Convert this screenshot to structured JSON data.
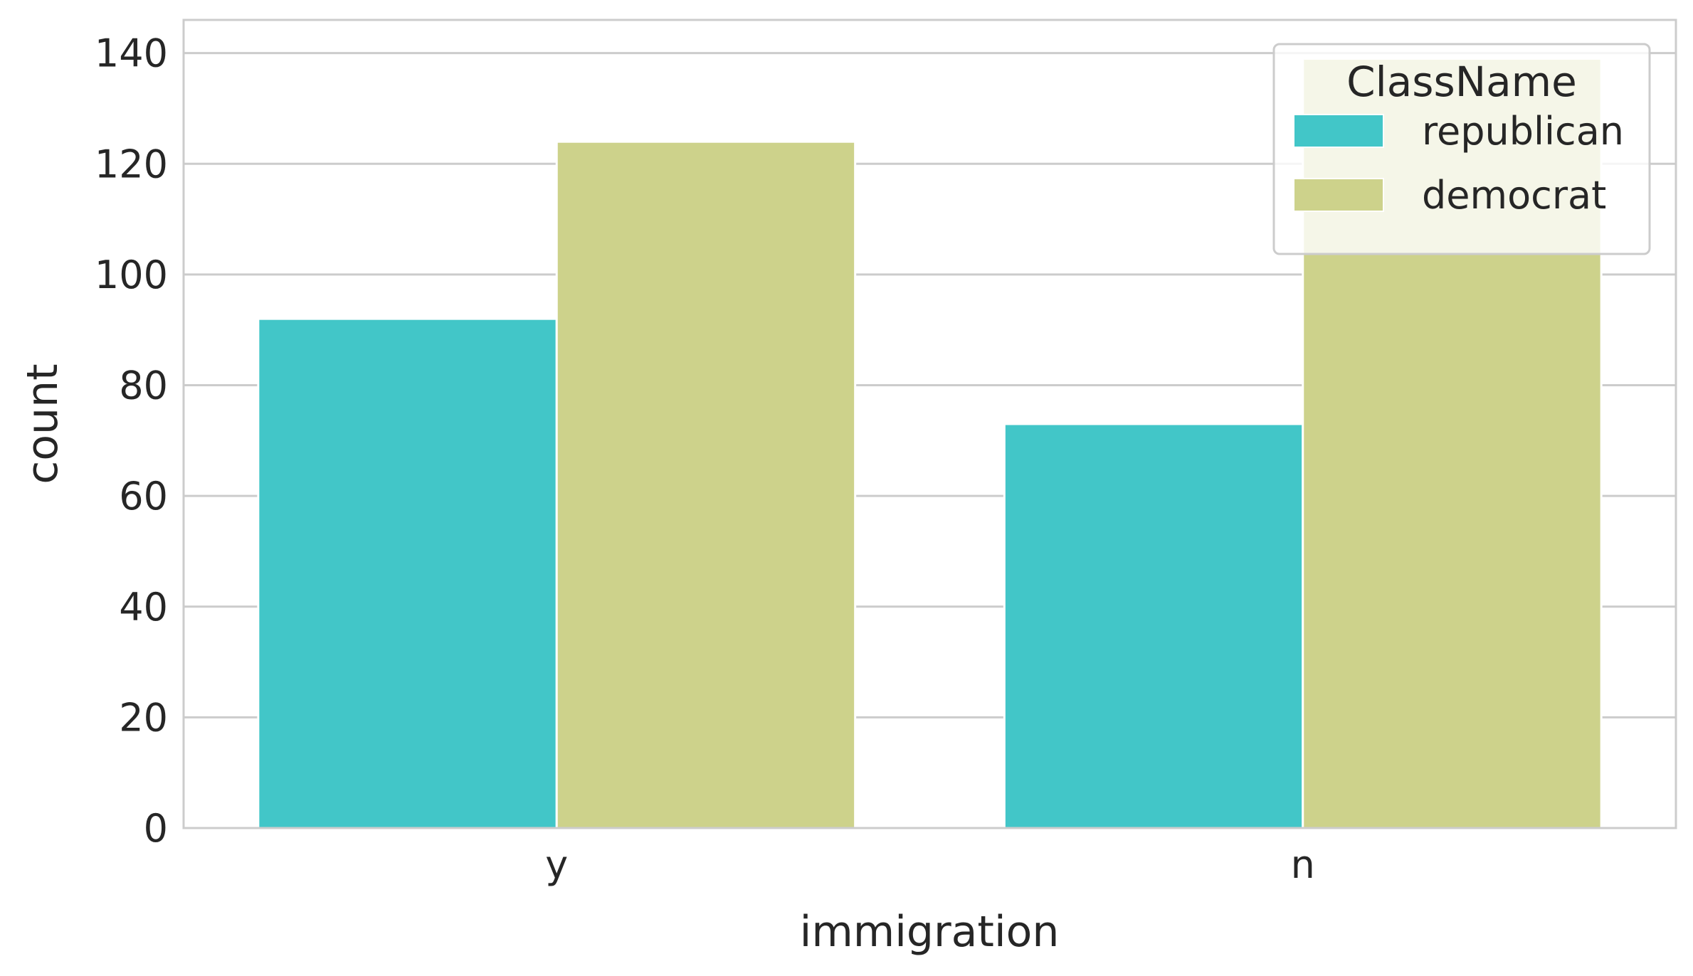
{
  "chart_data": {
    "type": "bar",
    "categories": [
      "y",
      "n"
    ],
    "series": [
      {
        "name": "republican",
        "values": [
          92,
          73
        ],
        "color": "#42c6c8"
      },
      {
        "name": "democrat",
        "values": [
          124,
          139
        ],
        "color": "#cdd28b"
      }
    ],
    "xlabel": "immigration",
    "ylabel": "count",
    "ylim": [
      0,
      146
    ],
    "yticks": [
      0,
      20,
      40,
      60,
      80,
      100,
      120,
      140
    ],
    "grid": true,
    "legend": {
      "title": "ClassName",
      "placement": "top-right"
    }
  }
}
